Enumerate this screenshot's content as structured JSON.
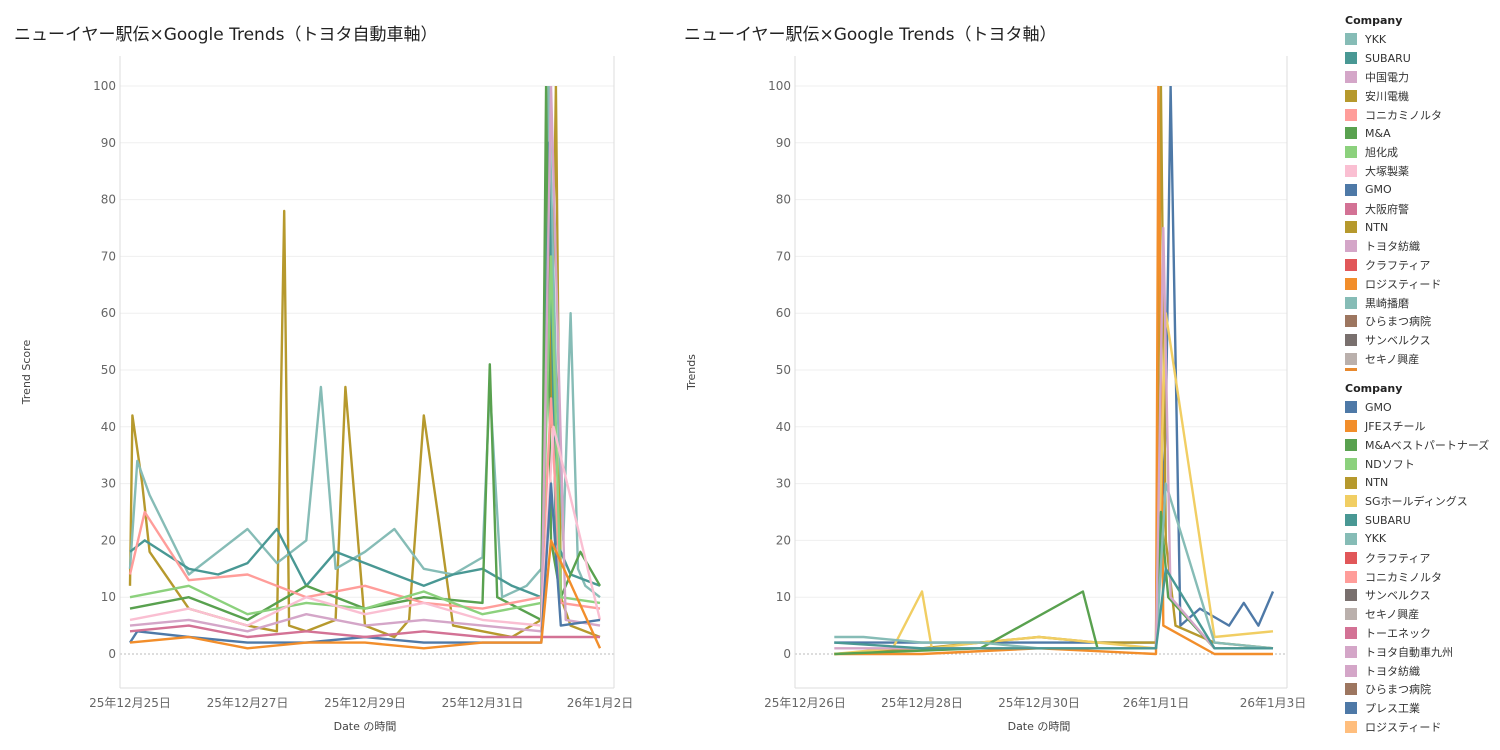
{
  "colors": {
    "YKK": "#86bcb6",
    "SUBARU": "#499894",
    "中国電力": "#d4a6c8",
    "安川電機": "#b6992d",
    "コニカミノルタ": "#ff9d9a",
    "M&A": "#59a14f",
    "旭化成": "#8cd17d",
    "大塚製薬": "#fabfd2",
    "GMO": "#4e79a7",
    "大阪府警": "#d37295",
    "NTN": "#b6992d",
    "トヨタ紡織": "#d4a6c8",
    "クラフティア": "#e15759",
    "ロジスティード": "#f28e2b",
    "黒崎播磨": "#86bcb6",
    "ひらまつ病院": "#9d7660",
    "サンベルクス": "#79706e",
    "セキノ興産": "#bab0ac",
    "JFEスチール": "#f28e2b",
    "M&Aベストパートナーズ": "#59a14f",
    "NDソフト": "#8cd17d",
    "SGホールディングス": "#f1ce63",
    "トーエネック": "#d37295",
    "トヨタ自動車九州": "#d4a6c8",
    "プレス工業": "#4e79a7",
    "ロジスティードB": "#ffbe7d"
  },
  "left": {
    "title": "ニューイヤー駅伝×Google Trends（トヨタ自動車軸）",
    "xlabel": "Date の時間",
    "ylabel": "Trend Score"
  },
  "right": {
    "title": "ニューイヤー駅伝×Google Trends（トヨタ軸）",
    "xlabel": "Date の時間",
    "ylabel": "Trends"
  },
  "legend1": {
    "title": "Company",
    "items": [
      "YKK",
      "SUBARU",
      "中国電力",
      "安川電機",
      "コニカミノルタ",
      "M&A",
      "旭化成",
      "大塚製薬",
      "GMO",
      "大阪府警",
      "NTN",
      "トヨタ紡織",
      "クラフティア",
      "ロジスティード",
      "黒崎播磨",
      "ひらまつ病院",
      "サンベルクス",
      "セキノ興産"
    ],
    "colorkeys": [
      "YKK",
      "SUBARU",
      "中国電力",
      "安川電機",
      "コニカミノルタ",
      "M&A",
      "旭化成",
      "大塚製薬",
      "GMO",
      "大阪府警",
      "NTN",
      "トヨタ紡織",
      "クラフティア",
      "ロジスティード",
      "黒崎播磨",
      "ひらまつ病院",
      "サンベルクス",
      "セキノ興産"
    ]
  },
  "legend2": {
    "title": "Company",
    "items": [
      "GMO",
      "JFEスチール",
      "M&Aベストパートナーズ",
      "NDソフト",
      "NTN",
      "SGホールディングス",
      "SUBARU",
      "YKK",
      "クラフティア",
      "コニカミノルタ",
      "サンベルクス",
      "セキノ興産",
      "トーエネック",
      "トヨタ自動車九州",
      "トヨタ紡織",
      "ひらまつ病院",
      "プレス工業",
      "ロジスティード"
    ],
    "colorkeys": [
      "GMO",
      "JFEスチール",
      "M&Aベストパートナーズ",
      "NDソフト",
      "NTN",
      "SGホールディングス",
      "SUBARU",
      "YKK",
      "クラフティア",
      "コニカミノルタ",
      "サンベルクス",
      "セキノ興産",
      "トーエネック",
      "トヨタ自動車九州",
      "トヨタ紡織",
      "ひらまつ病院",
      "プレス工業",
      "ロジスティードB"
    ]
  },
  "chart_data": [
    {
      "type": "line",
      "title": "ニューイヤー駅伝×Google Trends（トヨタ自動車軸）",
      "xlabel": "Date の時間",
      "ylabel": "Trend Score",
      "ylim": [
        0,
        100
      ],
      "yticks": [
        0,
        10,
        20,
        30,
        40,
        50,
        60,
        70,
        80,
        90,
        100
      ],
      "xlim": [
        "2025-12-25",
        "2026-01-02"
      ],
      "xticks": [
        {
          "date": "2025-12-25",
          "label": "25年12月25日"
        },
        {
          "date": "2025-12-27",
          "label": "25年12月27日"
        },
        {
          "date": "2025-12-29",
          "label": "25年12月29日"
        },
        {
          "date": "2025-12-31",
          "label": "25年12月31日"
        },
        {
          "date": "2026-01-02",
          "label": "26年1月2日"
        }
      ],
      "grid": true,
      "series": [
        {
          "name": "安川電機",
          "x": [
            "2025-12-25T00",
            "2025-12-25T01",
            "2025-12-25T03",
            "2025-12-25T05",
            "2025-12-25T08",
            "2025-12-26T00",
            "2025-12-27T00",
            "2025-12-27T12",
            "2025-12-27T15",
            "2025-12-27T17",
            "2025-12-28T00",
            "2025-12-28T12",
            "2025-12-28T16",
            "2025-12-29T00",
            "2025-12-29T12",
            "2025-12-29T18",
            "2025-12-30T00",
            "2025-12-30T06",
            "2025-12-30T12",
            "2025-12-31T00",
            "2025-12-31T12",
            "2026-01-01T00",
            "2026-01-01T03",
            "2026-01-01T04",
            "2026-01-01T06",
            "2026-01-01T08",
            "2026-01-01T12",
            "2026-01-02T00"
          ],
          "y": [
            12,
            42,
            36,
            30,
            18,
            8,
            5,
            4,
            78,
            5,
            4,
            6,
            47,
            5,
            3,
            6,
            42,
            24,
            5,
            4,
            3,
            6,
            100,
            40,
            100,
            10,
            5,
            3
          ]
        },
        {
          "name": "YKK",
          "x": [
            "2025-12-25T00",
            "2025-12-25T03",
            "2025-12-25T08",
            "2025-12-26T00",
            "2025-12-26T12",
            "2025-12-27T00",
            "2025-12-27T12",
            "2025-12-28T00",
            "2025-12-28T06",
            "2025-12-28T12",
            "2025-12-29T00",
            "2025-12-29T12",
            "2025-12-30T00",
            "2025-12-30T12",
            "2025-12-31T00",
            "2025-12-31T03",
            "2025-12-31T08",
            "2025-12-31T18",
            "2026-01-01T00",
            "2026-01-01T03",
            "2026-01-01T06",
            "2026-01-01T09",
            "2026-01-01T12",
            "2026-01-01T15",
            "2026-01-01T18",
            "2026-01-02T00"
          ],
          "y": [
            15,
            34,
            28,
            14,
            18,
            22,
            16,
            20,
            47,
            15,
            18,
            22,
            15,
            14,
            17,
            47,
            10,
            12,
            15,
            100,
            50,
            20,
            60,
            15,
            12,
            10
          ]
        },
        {
          "name": "SUBARU",
          "x": [
            "2025-12-25T00",
            "2025-12-25T06",
            "2025-12-26T00",
            "2025-12-26T12",
            "2025-12-27T00",
            "2025-12-27T12",
            "2025-12-28T00",
            "2025-12-28T12",
            "2025-12-29T00",
            "2025-12-29T12",
            "2025-12-30T00",
            "2025-12-30T12",
            "2025-12-31T00",
            "2025-12-31T12",
            "2026-01-01T00",
            "2026-01-01T03",
            "2026-01-01T06",
            "2026-01-01T12",
            "2026-01-02T00"
          ],
          "y": [
            18,
            20,
            15,
            14,
            16,
            22,
            12,
            18,
            16,
            14,
            12,
            14,
            15,
            12,
            10,
            90,
            20,
            14,
            12
          ]
        },
        {
          "name": "M&A",
          "x": [
            "2025-12-25T00",
            "2025-12-26T00",
            "2025-12-27T00",
            "2025-12-28T00",
            "2025-12-29T00",
            "2025-12-30T00",
            "2025-12-31T00",
            "2025-12-31T03",
            "2025-12-31T06",
            "2026-01-01T00",
            "2026-01-01T02",
            "2026-01-01T04",
            "2026-01-01T08",
            "2026-01-01T16",
            "2026-01-02T00"
          ],
          "y": [
            8,
            10,
            6,
            12,
            8,
            10,
            9,
            51,
            10,
            6,
            100,
            20,
            10,
            18,
            12
          ]
        },
        {
          "name": "コニカミノルタ",
          "x": [
            "2025-12-25T00",
            "2025-12-25T06",
            "2025-12-26T00",
            "2025-12-27T00",
            "2025-12-28T00",
            "2025-12-29T00",
            "2025-12-30T00",
            "2025-12-31T00",
            "2026-01-01T00",
            "2026-01-01T04",
            "2026-01-01T08",
            "2026-01-02T00"
          ],
          "y": [
            14,
            25,
            13,
            14,
            10,
            12,
            9,
            8,
            10,
            45,
            9,
            8
          ]
        },
        {
          "name": "旭化成",
          "x": [
            "2025-12-25T00",
            "2025-12-26T00",
            "2025-12-27T00",
            "2025-12-28T00",
            "2025-12-29T00",
            "2025-12-30T00",
            "2025-12-31T00",
            "2026-01-01T00",
            "2026-01-01T04",
            "2026-01-01T08",
            "2026-01-02T00"
          ],
          "y": [
            10,
            12,
            7,
            9,
            8,
            11,
            7,
            9,
            70,
            10,
            9
          ]
        },
        {
          "name": "中国電力",
          "x": [
            "2025-12-25T00",
            "2025-12-26T00",
            "2025-12-27T00",
            "2025-12-28T00",
            "2025-12-29T00",
            "2025-12-30T00",
            "2025-12-31T00",
            "2026-01-01T00",
            "2026-01-01T04",
            "2026-01-01T10",
            "2026-01-02T00"
          ],
          "y": [
            5,
            6,
            4,
            7,
            5,
            6,
            5,
            4,
            100,
            6,
            5
          ]
        },
        {
          "name": "大塚製薬",
          "x": [
            "2025-12-25T00",
            "2025-12-26T00",
            "2025-12-27T00",
            "2025-12-28T00",
            "2025-12-29T00",
            "2025-12-30T00",
            "2025-12-31T00",
            "2026-01-01T00",
            "2026-01-01T05",
            "2026-01-02T00"
          ],
          "y": [
            6,
            8,
            5,
            10,
            7,
            9,
            6,
            5,
            40,
            6
          ]
        },
        {
          "name": "GMO",
          "x": [
            "2025-12-25T00",
            "2025-12-25T03",
            "2025-12-26T00",
            "2025-12-27T00",
            "2025-12-28T00",
            "2025-12-29T00",
            "2025-12-30T00",
            "2025-12-31T00",
            "2026-01-01T00",
            "2026-01-01T04",
            "2026-01-01T08",
            "2026-01-02T00"
          ],
          "y": [
            2,
            4,
            3,
            2,
            2,
            3,
            2,
            2,
            2,
            30,
            5,
            6
          ]
        },
        {
          "name": "大阪府警",
          "x": [
            "2025-12-25T00",
            "2025-12-26T00",
            "2025-12-27T00",
            "2025-12-28T00",
            "2025-12-29T00",
            "2025-12-30T00",
            "2025-12-31T00",
            "2026-01-01T00",
            "2026-01-02T00"
          ],
          "y": [
            4,
            5,
            3,
            4,
            3,
            4,
            3,
            3,
            3
          ]
        },
        {
          "name": "ロジスティード",
          "x": [
            "2025-12-25T00",
            "2025-12-26T00",
            "2025-12-27T00",
            "2025-12-28T00",
            "2025-12-29T00",
            "2025-12-30T00",
            "2025-12-31T00",
            "2026-01-01T00",
            "2026-01-01T04",
            "2026-01-02T00"
          ],
          "y": [
            2,
            3,
            1,
            2,
            2,
            1,
            2,
            2,
            20,
            1
          ]
        }
      ]
    },
    {
      "type": "line",
      "title": "ニューイヤー駅伝×Google Trends（トヨタ軸）",
      "xlabel": "Date の時間",
      "ylabel": "Trends",
      "ylim": [
        0,
        100
      ],
      "yticks": [
        0,
        10,
        20,
        30,
        40,
        50,
        60,
        70,
        80,
        90,
        100
      ],
      "xlim": [
        "2025-12-26",
        "2026-01-03"
      ],
      "xticks": [
        {
          "date": "2025-12-26",
          "label": "25年12月26日"
        },
        {
          "date": "2025-12-28",
          "label": "25年12月28日"
        },
        {
          "date": "2025-12-30",
          "label": "25年12月30日"
        },
        {
          "date": "2026-01-01",
          "label": "26年1月1日"
        },
        {
          "date": "2026-01-03",
          "label": "26年1月3日"
        }
      ],
      "grid": true,
      "series": [
        {
          "name": "GMO",
          "x": [
            "2025-12-26T12",
            "2025-12-27T12",
            "2025-12-28T12",
            "2025-12-29T12",
            "2025-12-30T12",
            "2025-12-31T12",
            "2026-01-01T00",
            "2026-01-01T04",
            "2026-01-01T06",
            "2026-01-01T10",
            "2026-01-01T18",
            "2026-01-02T06",
            "2026-01-02T12",
            "2026-01-02T18",
            "2026-01-03T00"
          ],
          "y": [
            2,
            2,
            2,
            2,
            2,
            2,
            2,
            40,
            100,
            5,
            8,
            5,
            9,
            5,
            11
          ]
        },
        {
          "name": "NTN",
          "x": [
            "2025-12-26T12",
            "2025-12-28T00",
            "2025-12-29T00",
            "2025-12-30T00",
            "2025-12-31T00",
            "2026-01-01T00",
            "2026-01-01T02",
            "2026-01-01T04",
            "2026-01-01T08",
            "2026-01-02T00",
            "2026-01-03T00"
          ],
          "y": [
            0,
            1,
            2,
            3,
            2,
            2,
            100,
            20,
            5,
            2,
            1
          ]
        },
        {
          "name": "ロジスティード",
          "x": [
            "2025-12-26T12",
            "2025-12-28T00",
            "2025-12-30T00",
            "2026-01-01T00",
            "2026-01-01T01",
            "2026-01-01T03",
            "2026-01-02T00",
            "2026-01-03T00"
          ],
          "y": [
            0,
            0,
            1,
            0,
            100,
            5,
            0,
            0
          ]
        },
        {
          "name": "SGホールディングス",
          "x": [
            "2025-12-26T12",
            "2025-12-27T12",
            "2025-12-28T00",
            "2025-12-28T04",
            "2025-12-29T00",
            "2025-12-30T00",
            "2025-12-31T00",
            "2026-01-01T00",
            "2026-01-01T04",
            "2026-01-02T00",
            "2026-01-03T00"
          ],
          "y": [
            0,
            1,
            11,
            1,
            2,
            3,
            2,
            1,
            60,
            3,
            4
          ]
        },
        {
          "name": "M&Aベストパートナーズ",
          "x": [
            "2025-12-26T12",
            "2025-12-29T00",
            "2025-12-30T18",
            "2025-12-31T00",
            "2026-01-01T00",
            "2026-01-01T02",
            "2026-01-01T05",
            "2026-01-02T00",
            "2026-01-03T00"
          ],
          "y": [
            0,
            1,
            11,
            1,
            1,
            25,
            10,
            1,
            1
          ]
        },
        {
          "name": "YKK",
          "x": [
            "2025-12-26T12",
            "2025-12-27T00",
            "2025-12-28T00",
            "2025-12-29T00",
            "2025-12-30T00",
            "2025-12-31T00",
            "2026-01-01T00",
            "2026-01-01T04",
            "2026-01-02T00",
            "2026-01-03T00"
          ],
          "y": [
            3,
            3,
            2,
            2,
            1,
            1,
            1,
            30,
            2,
            1
          ]
        },
        {
          "name": "トヨタ自動車九州",
          "x": [
            "2025-12-26T12",
            "2025-12-29T00",
            "2026-01-01T00",
            "2026-01-01T03",
            "2026-01-01T06",
            "2026-01-02T00",
            "2026-01-03T00"
          ],
          "y": [
            1,
            1,
            1,
            75,
            10,
            1,
            1
          ]
        },
        {
          "name": "SUBARU",
          "x": [
            "2025-12-26T12",
            "2025-12-28T00",
            "2025-12-30T00",
            "2026-01-01T00",
            "2026-01-01T04",
            "2026-01-02T00",
            "2026-01-03T00"
          ],
          "y": [
            2,
            1,
            1,
            1,
            15,
            1,
            1
          ]
        }
      ]
    }
  ]
}
